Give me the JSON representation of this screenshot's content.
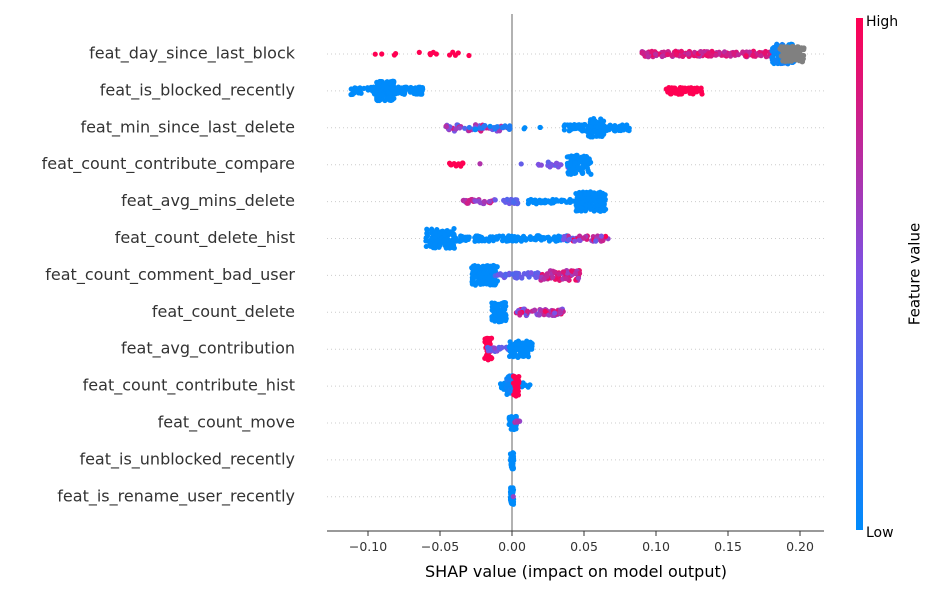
{
  "chart_data": {
    "type": "scatter",
    "subtype": "beeswarm",
    "xlabel": "SHAP value (impact on model output)",
    "xlim": [
      -0.13,
      0.215
    ],
    "xticks": [
      -0.1,
      -0.05,
      0.0,
      0.05,
      0.1,
      0.15,
      0.2
    ],
    "xtick_labels": [
      "−0.10",
      "−0.05",
      "0.00",
      "0.05",
      "0.10",
      "0.15",
      "0.20"
    ],
    "zero_line": 0.0,
    "colorbar": {
      "title": "Feature value",
      "high_label": "High",
      "low_label": "Low",
      "high_color": "#ff0052",
      "low_color": "#008bfb"
    },
    "gray_color": "#808080",
    "features": [
      {
        "name": "feat_day_since_last_block",
        "clusters": [
          {
            "x": [
              -0.098,
              -0.09
            ],
            "n": 2,
            "spread": 0.1,
            "c": [
              1,
              1
            ]
          },
          {
            "x": [
              -0.083,
              -0.078
            ],
            "n": 2,
            "spread": 0.1,
            "c": [
              1,
              1
            ]
          },
          {
            "x": [
              -0.065,
              -0.052
            ],
            "n": 5,
            "spread": 0.2,
            "c": [
              1,
              1
            ]
          },
          {
            "x": [
              -0.045,
              -0.027
            ],
            "n": 5,
            "spread": 0.2,
            "c": [
              1,
              1
            ]
          },
          {
            "x": [
              0.09,
              0.18
            ],
            "n": 160,
            "spread": 0.25,
            "c": [
              0.95,
              0.7
            ]
          },
          {
            "x": [
              0.18,
              0.196
            ],
            "n": 120,
            "spread": 0.9,
            "c": [
              0.0,
              0.1
            ]
          },
          {
            "x": [
              0.186,
              0.203
            ],
            "n": 80,
            "spread": 0.7,
            "gray": true
          }
        ]
      },
      {
        "name": "feat_is_blocked_recently",
        "clusters": [
          {
            "x": [
              -0.112,
              -0.062
            ],
            "n": 140,
            "spread": 0.35,
            "c": [
              0,
              0
            ]
          },
          {
            "x": [
              -0.094,
              -0.082
            ],
            "n": 120,
            "spread": 0.9,
            "c": [
              0,
              0
            ]
          },
          {
            "x": [
              0.107,
              0.132
            ],
            "n": 70,
            "spread": 0.3,
            "c": [
              1,
              1
            ]
          }
        ]
      },
      {
        "name": "feat_min_since_last_delete",
        "clusters": [
          {
            "x": [
              -0.046,
              -0.003
            ],
            "n": 40,
            "spread": 0.3,
            "c": [
              0.9,
              0.3
            ]
          },
          {
            "x": [
              -0.03,
              0.001
            ],
            "n": 20,
            "spread": 0.2,
            "c": [
              0.2,
              0.0
            ]
          },
          {
            "x": [
              0.007,
              0.011
            ],
            "n": 2,
            "spread": 0.1,
            "c": [
              0,
              0
            ]
          },
          {
            "x": [
              0.017,
              0.02
            ],
            "n": 2,
            "spread": 0.1,
            "c": [
              0,
              0
            ]
          },
          {
            "x": [
              0.036,
              0.082
            ],
            "n": 90,
            "spread": 0.3,
            "c": [
              0,
              0
            ]
          },
          {
            "x": [
              0.053,
              0.064
            ],
            "n": 80,
            "spread": 0.85,
            "c": [
              0,
              0
            ]
          }
        ]
      },
      {
        "name": "feat_count_contribute_compare",
        "clusters": [
          {
            "x": [
              -0.044,
              -0.034
            ],
            "n": 10,
            "spread": 0.2,
            "c": [
              1,
              1
            ]
          },
          {
            "x": [
              -0.024,
              -0.022
            ],
            "n": 1,
            "spread": 0.1,
            "c": [
              0.7,
              0.7
            ]
          },
          {
            "x": [
              0.006,
              0.008
            ],
            "n": 1,
            "spread": 0.1,
            "c": [
              0.4,
              0.4
            ]
          },
          {
            "x": [
              0.018,
              0.021
            ],
            "n": 2,
            "spread": 0.1,
            "c": [
              0.5,
              0.5
            ]
          },
          {
            "x": [
              0.02,
              0.045
            ],
            "n": 20,
            "spread": 0.25,
            "c": [
              0.6,
              0.35
            ]
          },
          {
            "x": [
              0.038,
              0.055
            ],
            "n": 80,
            "spread": 0.9,
            "c": [
              0,
              0
            ]
          }
        ]
      },
      {
        "name": "feat_avg_mins_delete",
        "clusters": [
          {
            "x": [
              -0.034,
              -0.012
            ],
            "n": 30,
            "spread": 0.2,
            "c": [
              0.9,
              0.5
            ]
          },
          {
            "x": [
              -0.012,
              0.005
            ],
            "n": 20,
            "spread": 0.2,
            "c": [
              0.5,
              0.3
            ]
          },
          {
            "x": [
              0.01,
              0.045
            ],
            "n": 50,
            "spread": 0.2,
            "c": [
              0,
              0
            ]
          },
          {
            "x": [
              0.044,
              0.065
            ],
            "n": 150,
            "spread": 0.9,
            "c": [
              0,
              0
            ]
          }
        ]
      },
      {
        "name": "feat_count_delete_hist",
        "clusters": [
          {
            "x": [
              -0.06,
              -0.04
            ],
            "n": 120,
            "spread": 0.9,
            "c": [
              0,
              0
            ]
          },
          {
            "x": [
              -0.04,
              0.04
            ],
            "n": 140,
            "spread": 0.25,
            "c": [
              0,
              0
            ]
          },
          {
            "x": [
              0.035,
              0.067
            ],
            "n": 40,
            "spread": 0.25,
            "c": [
              1,
              0.4
            ]
          }
        ]
      },
      {
        "name": "feat_count_comment_bad_user",
        "clusters": [
          {
            "x": [
              -0.028,
              -0.01
            ],
            "n": 120,
            "spread": 0.9,
            "c": [
              0,
              0
            ]
          },
          {
            "x": [
              -0.012,
              0.02
            ],
            "n": 50,
            "spread": 0.25,
            "c": [
              0.5,
              0.3
            ]
          },
          {
            "x": [
              0.02,
              0.047
            ],
            "n": 60,
            "spread": 0.45,
            "c": [
              1,
              0.6
            ]
          }
        ]
      },
      {
        "name": "feat_count_delete",
        "clusters": [
          {
            "x": [
              -0.014,
              -0.004
            ],
            "n": 80,
            "spread": 0.9,
            "c": [
              0,
              0
            ]
          },
          {
            "x": [
              0.003,
              0.036
            ],
            "n": 70,
            "spread": 0.3,
            "c": [
              1,
              0.4
            ]
          }
        ]
      },
      {
        "name": "feat_avg_contribution",
        "clusters": [
          {
            "x": [
              -0.019,
              -0.014
            ],
            "n": 50,
            "spread": 1.0,
            "c": [
              1,
              1
            ]
          },
          {
            "x": [
              -0.018,
              0.006
            ],
            "n": 30,
            "spread": 0.2,
            "c": [
              0.6,
              0.3
            ]
          },
          {
            "x": [
              -0.002,
              0.014
            ],
            "n": 90,
            "spread": 0.75,
            "c": [
              0,
              0
            ]
          }
        ]
      },
      {
        "name": "feat_count_contribute_hist",
        "clusters": [
          {
            "x": [
              -0.009,
              0.013
            ],
            "n": 40,
            "spread": 0.3,
            "c": [
              0,
              0
            ]
          },
          {
            "x": [
              -0.004,
              0.002
            ],
            "n": 50,
            "spread": 0.95,
            "c": [
              0,
              0.1
            ]
          },
          {
            "x": [
              0.001,
              0.005
            ],
            "n": 40,
            "spread": 0.95,
            "c": [
              1,
              1
            ]
          }
        ]
      },
      {
        "name": "feat_count_move",
        "clusters": [
          {
            "x": [
              -0.002,
              0.003
            ],
            "n": 40,
            "spread": 0.6,
            "c": [
              0,
              0
            ]
          },
          {
            "x": [
              0.002,
              0.006
            ],
            "n": 6,
            "spread": 0.2,
            "c": [
              0.7,
              0.5
            ]
          }
        ]
      },
      {
        "name": "feat_is_unblocked_recently",
        "clusters": [
          {
            "x": [
              -0.0012,
              0.0012
            ],
            "n": 40,
            "spread": 0.85,
            "c": [
              0,
              0
            ]
          }
        ]
      },
      {
        "name": "feat_is_rename_user_recently",
        "clusters": [
          {
            "x": [
              -0.0012,
              0.0012
            ],
            "n": 40,
            "spread": 0.85,
            "c": [
              0,
              0
            ]
          },
          {
            "x": [
              -0.001,
              0.001
            ],
            "n": 1,
            "spread": 0.05,
            "c": [
              0.6,
              0.6
            ]
          }
        ]
      }
    ]
  }
}
